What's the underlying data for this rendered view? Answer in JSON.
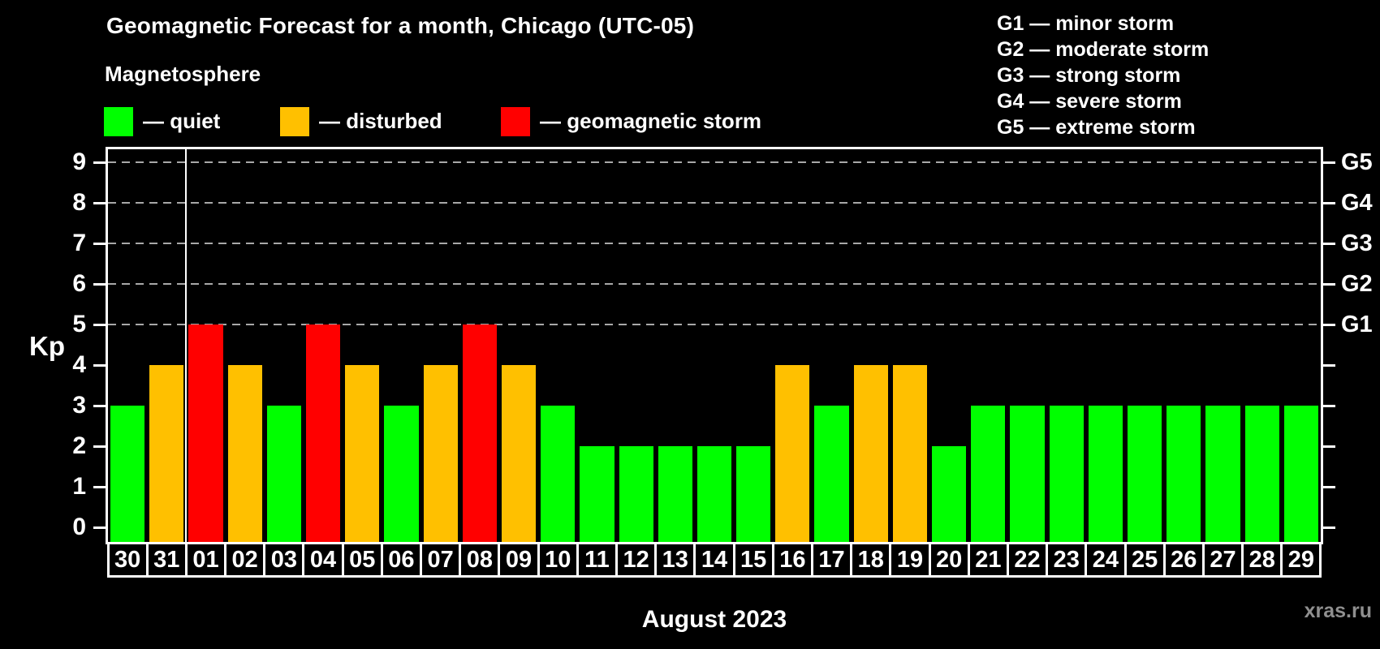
{
  "title": "Geomagnetic Forecast for a month, Chicago (UTC-05)",
  "subtitle": "Magnetosphere",
  "status_legend": [
    {
      "status": "quiet",
      "label": "— quiet",
      "color": "#00ff00"
    },
    {
      "status": "disturbed",
      "label": "— disturbed",
      "color": "#ffc000"
    },
    {
      "status": "storm",
      "label": "— geomagnetic storm",
      "color": "#ff0000"
    }
  ],
  "g_scale_legend": [
    "G1 — minor storm",
    "G2 — moderate storm",
    "G3 — strong storm",
    "G4 — severe storm",
    "G5 — extreme storm"
  ],
  "chart_data": {
    "type": "bar",
    "title": "Geomagnetic Forecast for a month, Chicago (UTC-05)",
    "ylabel": "Kp",
    "xlabel": "August 2023",
    "ylim": [
      -0.4,
      9.3
    ],
    "yticks_left": [
      0,
      1,
      2,
      3,
      4,
      5,
      6,
      7,
      8,
      9
    ],
    "gridlines_at_kp": [
      5,
      6,
      7,
      8,
      9
    ],
    "grid": "dashed horizontal at Kp 5-9",
    "legend_position": "top",
    "right_axis_ticks": [
      0,
      1,
      2,
      3,
      4,
      5,
      6,
      7,
      8,
      9
    ],
    "right_axis_labels": [
      {
        "kp": 5,
        "label": "G1"
      },
      {
        "kp": 6,
        "label": "G2"
      },
      {
        "kp": 7,
        "label": "G3"
      },
      {
        "kp": 8,
        "label": "G4"
      },
      {
        "kp": 9,
        "label": "G5"
      }
    ],
    "month_separator_after_index": 1,
    "categories": [
      "30",
      "31",
      "01",
      "02",
      "03",
      "04",
      "05",
      "06",
      "07",
      "08",
      "09",
      "10",
      "11",
      "12",
      "13",
      "14",
      "15",
      "16",
      "17",
      "18",
      "19",
      "20",
      "21",
      "22",
      "23",
      "24",
      "25",
      "26",
      "27",
      "28",
      "29"
    ],
    "series": [
      {
        "name": "Kp forecast",
        "values": [
          3,
          4,
          5,
          4,
          3,
          5,
          4,
          3,
          4,
          5,
          4,
          3,
          2,
          2,
          2,
          2,
          2,
          4,
          3,
          4,
          4,
          2,
          3,
          3,
          3,
          3,
          3,
          3,
          3,
          3,
          3
        ],
        "statuses": [
          "quiet",
          "disturbed",
          "storm",
          "disturbed",
          "quiet",
          "storm",
          "disturbed",
          "quiet",
          "disturbed",
          "storm",
          "disturbed",
          "quiet",
          "quiet",
          "quiet",
          "quiet",
          "quiet",
          "quiet",
          "disturbed",
          "quiet",
          "disturbed",
          "disturbed",
          "quiet",
          "quiet",
          "quiet",
          "quiet",
          "quiet",
          "quiet",
          "quiet",
          "quiet",
          "quiet",
          "quiet"
        ]
      }
    ]
  },
  "colors": {
    "background": "#000000",
    "text": "#ffffff",
    "axis": "#ffffff",
    "grid": "#a8a8a8",
    "quiet": "#00ff00",
    "disturbed": "#ffc000",
    "storm": "#ff0000",
    "watermark": "#8f8f8f"
  },
  "watermark": "xras.ru"
}
